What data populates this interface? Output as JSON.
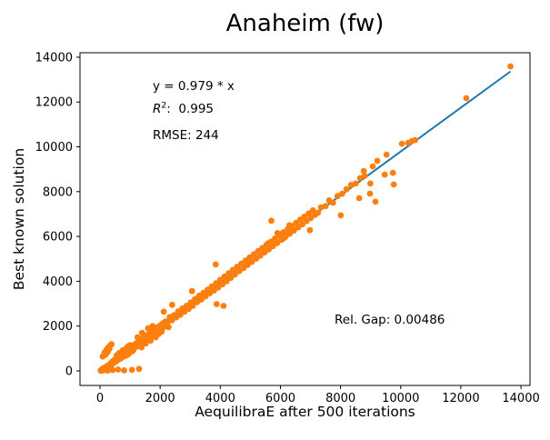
{
  "chart_data": {
    "type": "scatter",
    "title": "Anaheim (fw)",
    "xlabel": "AequilibraE after 500 iterations",
    "ylabel": "Best known solution",
    "xlim": [
      -665,
      14300
    ],
    "ylim": [
      -650,
      14200
    ],
    "xticks": [
      0,
      2000,
      4000,
      6000,
      8000,
      10000,
      12000,
      14000
    ],
    "yticks": [
      0,
      2000,
      4000,
      6000,
      8000,
      10000,
      12000,
      14000
    ],
    "grid": false,
    "point_color": "#ff7f0e",
    "line_color": "#1f77b4",
    "fit_line": {
      "slope": 0.979,
      "intercept": 0,
      "x_start": 0,
      "x_end": 13650
    },
    "annotations": {
      "equation": "y = 0.979 * x",
      "r2_symbol": "R",
      "r2_exponent": "2",
      "r2_value": ":  0.995",
      "rmse": "RMSE: 244",
      "rel_gap": "Rel. Gap: 0.00486"
    },
    "points": [
      [
        20,
        10
      ],
      [
        40,
        45
      ],
      [
        60,
        15
      ],
      [
        75,
        90
      ],
      [
        95,
        55
      ],
      [
        110,
        120
      ],
      [
        130,
        75
      ],
      [
        150,
        140
      ],
      [
        170,
        100
      ],
      [
        190,
        170
      ],
      [
        210,
        130
      ],
      [
        230,
        210
      ],
      [
        250,
        160
      ],
      [
        270,
        240
      ],
      [
        290,
        195
      ],
      [
        310,
        280
      ],
      [
        330,
        230
      ],
      [
        350,
        300
      ],
      [
        55,
        5
      ],
      [
        105,
        25
      ],
      [
        155,
        45
      ],
      [
        205,
        70
      ],
      [
        255,
        95
      ],
      [
        305,
        120
      ],
      [
        360,
        150
      ],
      [
        85,
        35
      ],
      [
        90,
        640
      ],
      [
        120,
        700
      ],
      [
        150,
        820
      ],
      [
        190,
        730
      ],
      [
        220,
        950
      ],
      [
        260,
        860
      ],
      [
        280,
        1060
      ],
      [
        310,
        990
      ],
      [
        340,
        1130
      ],
      [
        380,
        1190
      ],
      [
        250,
        15
      ],
      [
        420,
        35
      ],
      [
        600,
        60
      ],
      [
        800,
        25
      ],
      [
        1060,
        45
      ],
      [
        1300,
        90
      ],
      [
        370,
        360
      ],
      [
        395,
        305
      ],
      [
        420,
        430
      ],
      [
        445,
        345
      ],
      [
        470,
        480
      ],
      [
        495,
        390
      ],
      [
        520,
        530
      ],
      [
        545,
        440
      ],
      [
        570,
        600
      ],
      [
        595,
        495
      ],
      [
        620,
        645
      ],
      [
        645,
        525
      ],
      [
        670,
        690
      ],
      [
        695,
        560
      ],
      [
        720,
        760
      ],
      [
        745,
        615
      ],
      [
        770,
        805
      ],
      [
        795,
        645
      ],
      [
        820,
        845
      ],
      [
        845,
        675
      ],
      [
        870,
        885
      ],
      [
        895,
        705
      ],
      [
        920,
        925
      ],
      [
        945,
        745
      ],
      [
        970,
        1005
      ],
      [
        995,
        825
      ],
      [
        1020,
        1045
      ],
      [
        1045,
        865
      ],
      [
        1070,
        1085
      ],
      [
        1095,
        905
      ],
      [
        560,
        700
      ],
      [
        640,
        800
      ],
      [
        760,
        920
      ],
      [
        880,
        1020
      ],
      [
        940,
        1100
      ],
      [
        1000,
        1150
      ],
      [
        1100,
        1120
      ],
      [
        1130,
        1005
      ],
      [
        1160,
        1185
      ],
      [
        1190,
        1065
      ],
      [
        1220,
        1245
      ],
      [
        1250,
        1105
      ],
      [
        1280,
        1305
      ],
      [
        1310,
        1155
      ],
      [
        1340,
        1365
      ],
      [
        1370,
        1205
      ],
      [
        1400,
        1425
      ],
      [
        1430,
        1265
      ],
      [
        1460,
        1485
      ],
      [
        1490,
        1325
      ],
      [
        1520,
        1545
      ],
      [
        1550,
        1385
      ],
      [
        1580,
        1605
      ],
      [
        1610,
        1445
      ],
      [
        1640,
        1665
      ],
      [
        1670,
        1505
      ],
      [
        1700,
        1725
      ],
      [
        1730,
        1565
      ],
      [
        1760,
        1785
      ],
      [
        1790,
        1625
      ],
      [
        1820,
        1845
      ],
      [
        1850,
        1685
      ],
      [
        1880,
        1905
      ],
      [
        1910,
        1745
      ],
      [
        1940,
        1965
      ],
      [
        1970,
        1805
      ],
      [
        2000,
        2025
      ],
      [
        2030,
        1865
      ],
      [
        2060,
        2085
      ],
      [
        2090,
        1925
      ],
      [
        2120,
        2145
      ],
      [
        2150,
        1985
      ],
      [
        2180,
        2205
      ],
      [
        1250,
        1500
      ],
      [
        1400,
        1700
      ],
      [
        1600,
        1900
      ],
      [
        1750,
        2000
      ],
      [
        1380,
        1050
      ],
      [
        1520,
        1220
      ],
      [
        1680,
        1350
      ],
      [
        1850,
        1500
      ],
      [
        1950,
        1650
      ],
      [
        2050,
        1750
      ],
      [
        2120,
        2640
      ],
      [
        2280,
        1950
      ],
      [
        2250,
        2180
      ],
      [
        2320,
        2400
      ],
      [
        2390,
        2255
      ],
      [
        2460,
        2485
      ],
      [
        2530,
        2385
      ],
      [
        2600,
        2655
      ],
      [
        2670,
        2505
      ],
      [
        2740,
        2785
      ],
      [
        2810,
        2645
      ],
      [
        2880,
        2905
      ],
      [
        2950,
        2765
      ],
      [
        3020,
        3055
      ],
      [
        3090,
        2905
      ],
      [
        3160,
        3205
      ],
      [
        3230,
        3065
      ],
      [
        3300,
        3355
      ],
      [
        3370,
        3185
      ],
      [
        3440,
        3485
      ],
      [
        3510,
        3325
      ],
      [
        3580,
        3625
      ],
      [
        3650,
        3465
      ],
      [
        3720,
        3765
      ],
      [
        3790,
        3585
      ],
      [
        3860,
        3905
      ],
      [
        3930,
        3725
      ],
      [
        4000,
        4065
      ],
      [
        4070,
        3865
      ],
      [
        4140,
        4205
      ],
      [
        4210,
        4005
      ],
      [
        4280,
        4355
      ],
      [
        4350,
        4155
      ],
      [
        4420,
        4505
      ],
      [
        4490,
        4305
      ],
      [
        4560,
        4645
      ],
      [
        4630,
        4455
      ],
      [
        4700,
        4785
      ],
      [
        4770,
        4585
      ],
      [
        4840,
        4925
      ],
      [
        4910,
        4725
      ],
      [
        4980,
        5065
      ],
      [
        5050,
        4865
      ],
      [
        5120,
        5205
      ],
      [
        5190,
        5005
      ],
      [
        5260,
        5345
      ],
      [
        5330,
        5145
      ],
      [
        5400,
        5485
      ],
      [
        5470,
        5285
      ],
      [
        5540,
        5625
      ],
      [
        5610,
        5425
      ],
      [
        5680,
        5765
      ],
      [
        5750,
        5565
      ],
      [
        5820,
        5905
      ],
      [
        5890,
        5705
      ],
      [
        5960,
        6045
      ],
      [
        6030,
        5845
      ],
      [
        6100,
        6185
      ],
      [
        6170,
        5985
      ],
      [
        6240,
        6325
      ],
      [
        6310,
        6125
      ],
      [
        6380,
        6465
      ],
      [
        6450,
        6265
      ],
      [
        6520,
        6605
      ],
      [
        6590,
        6405
      ],
      [
        6660,
        6745
      ],
      [
        6730,
        6545
      ],
      [
        6800,
        6885
      ],
      [
        6870,
        6685
      ],
      [
        6940,
        7025
      ],
      [
        7010,
        6825
      ],
      [
        7080,
        7165
      ],
      [
        7150,
        6965
      ],
      [
        3850,
        4750
      ],
      [
        3880,
        2980
      ],
      [
        4110,
        2900
      ],
      [
        5700,
        6700
      ],
      [
        6980,
        6280
      ],
      [
        2400,
        2950
      ],
      [
        3060,
        3560
      ],
      [
        5600,
        5700
      ],
      [
        5800,
        5750
      ],
      [
        6000,
        6100
      ],
      [
        6200,
        6060
      ],
      [
        5900,
        6150
      ],
      [
        6100,
        5905
      ],
      [
        5500,
        5355
      ],
      [
        6300,
        6500
      ],
      [
        6400,
        6305
      ],
      [
        7250,
        7060
      ],
      [
        7350,
        7300
      ],
      [
        7500,
        7355
      ],
      [
        7620,
        7610
      ],
      [
        7750,
        7505
      ],
      [
        7900,
        7800
      ],
      [
        8050,
        7905
      ],
      [
        8200,
        8105
      ],
      [
        8350,
        8300
      ],
      [
        8500,
        8360
      ],
      [
        8650,
        8605
      ],
      [
        8800,
        8705
      ],
      [
        8770,
        8920
      ],
      [
        9070,
        9130
      ],
      [
        9220,
        9370
      ],
      [
        9530,
        9650
      ],
      [
        8010,
        6940
      ],
      [
        8620,
        7710
      ],
      [
        8980,
        7910
      ],
      [
        9160,
        7550
      ],
      [
        8990,
        8360
      ],
      [
        9470,
        8760
      ],
      [
        9740,
        8840
      ],
      [
        9770,
        8320
      ],
      [
        10040,
        10140
      ],
      [
        10250,
        10180
      ],
      [
        10370,
        10260
      ],
      [
        10480,
        10300
      ],
      [
        12180,
        12170
      ],
      [
        13650,
        13590
      ]
    ]
  }
}
